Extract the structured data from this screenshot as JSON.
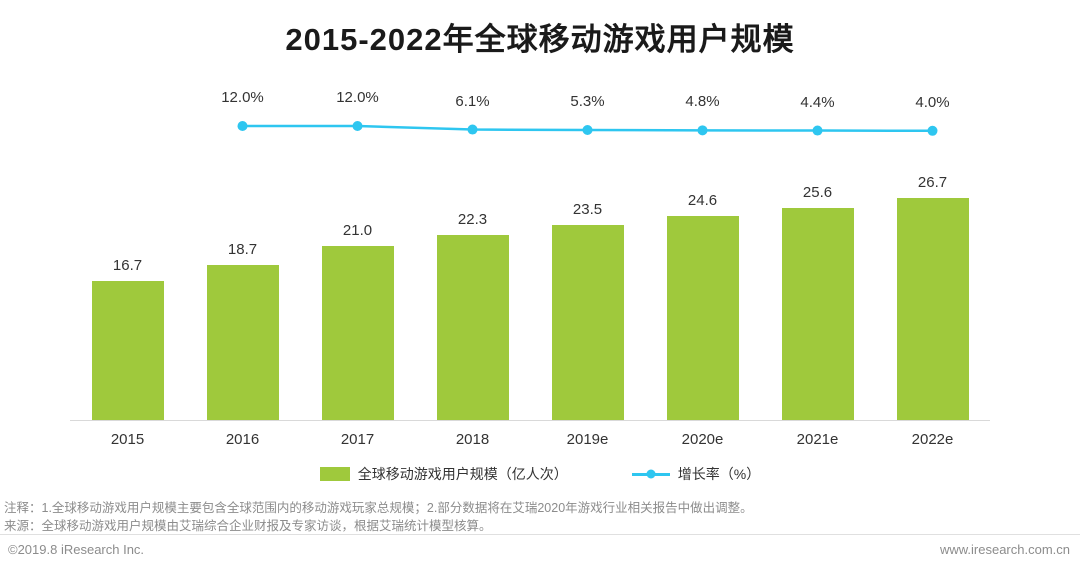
{
  "title": "2015-2022年全球移动游戏用户规模",
  "chart_data": {
    "type": "bar",
    "categories": [
      "2015",
      "2016",
      "2017",
      "2018",
      "2019e",
      "2020e",
      "2021e",
      "2022e"
    ],
    "series": [
      {
        "name": "全球移动游戏用户规模（亿人次）",
        "type": "bar",
        "values": [
          16.7,
          18.7,
          21.0,
          22.3,
          23.5,
          24.6,
          25.6,
          26.7
        ]
      },
      {
        "name": "增长率（%）",
        "type": "line",
        "values": [
          null,
          12.0,
          12.0,
          6.1,
          5.3,
          4.8,
          4.4,
          4.0
        ]
      }
    ],
    "title": "2015-2022年全球移动游戏用户规模",
    "xlabel": "",
    "ylabel": "",
    "legend_position": "bottom",
    "grid": false
  },
  "colors": {
    "bar": "#9FC93C",
    "line": "#2EC6F0",
    "axis": "#d9d9d9"
  },
  "notes": {
    "line1": "注释：1.全球移动游戏用户规模主要包含全球范围内的移动游戏玩家总规模；2.部分数据将在艾瑞2020年游戏行业相关报告中做出调整。",
    "line2": "来源：全球移动游戏用户规模由艾瑞综合企业财报及专家访谈，根据艾瑞统计模型核算。"
  },
  "footer": {
    "left": "©2019.8 iResearch Inc.",
    "right": "www.iresearch.com.cn"
  }
}
